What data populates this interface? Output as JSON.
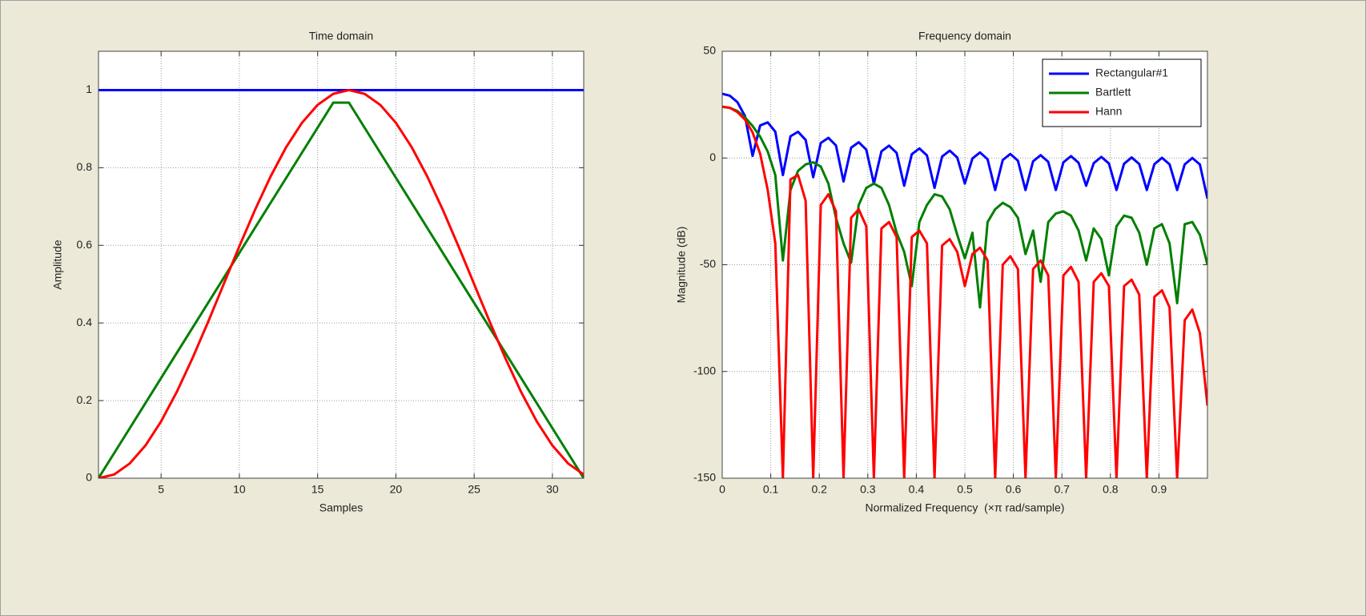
{
  "chart_data": [
    {
      "type": "line",
      "title": "Time domain",
      "xlabel": "Samples",
      "ylabel": "Amplitude",
      "x": [
        1,
        2,
        3,
        4,
        5,
        6,
        7,
        8,
        9,
        10,
        11,
        12,
        13,
        14,
        15,
        16,
        17,
        18,
        19,
        20,
        21,
        22,
        23,
        24,
        25,
        26,
        27,
        28,
        29,
        30,
        31,
        32
      ],
      "xlim": [
        1,
        32
      ],
      "xticks": [
        5,
        10,
        15,
        20,
        25,
        30
      ],
      "ylim": [
        0,
        1.1
      ],
      "yticks": [
        0,
        0.2,
        0.4,
        0.6,
        0.8,
        1
      ],
      "grid": true,
      "series": [
        {
          "color": "#0000ff",
          "values": [
            1,
            1,
            1,
            1,
            1,
            1,
            1,
            1,
            1,
            1,
            1,
            1,
            1,
            1,
            1,
            1,
            1,
            1,
            1,
            1,
            1,
            1,
            1,
            1,
            1,
            1,
            1,
            1,
            1,
            1,
            1,
            1
          ]
        },
        {
          "color": "#007f00",
          "values": [
            0,
            0.0645,
            0.129,
            0.1935,
            0.2581,
            0.3226,
            0.3871,
            0.4516,
            0.5161,
            0.5806,
            0.6452,
            0.7097,
            0.7742,
            0.8387,
            0.9032,
            0.9677,
            0.9677,
            0.9032,
            0.8387,
            0.7742,
            0.7097,
            0.6452,
            0.5806,
            0.5161,
            0.4516,
            0.3871,
            0.3226,
            0.2581,
            0.1935,
            0.129,
            0.0645,
            0
          ]
        },
        {
          "color": "#ff0000",
          "values": [
            0,
            0.0096,
            0.0381,
            0.0843,
            0.1464,
            0.2222,
            0.3087,
            0.4025,
            0.5,
            0.5975,
            0.6913,
            0.7778,
            0.8536,
            0.9157,
            0.9619,
            0.9904,
            1,
            0.9904,
            0.9619,
            0.9157,
            0.8536,
            0.7778,
            0.6913,
            0.5975,
            0.5,
            0.4025,
            0.3087,
            0.2222,
            0.1464,
            0.0843,
            0.0381,
            0.0096
          ]
        }
      ]
    },
    {
      "type": "line",
      "title": "Frequency domain",
      "xlabel": "Normalized Frequency  (×π rad/sample)",
      "ylabel": "Magnitude (dB)",
      "x": [
        0,
        0.015625,
        0.03125,
        0.046875,
        0.0625,
        0.078125,
        0.09375,
        0.109375,
        0.125,
        0.140625,
        0.15625,
        0.171875,
        0.1875,
        0.203125,
        0.21875,
        0.234375,
        0.25,
        0.265625,
        0.28125,
        0.296875,
        0.3125,
        0.328125,
        0.34375,
        0.359375,
        0.375,
        0.390625,
        0.40625,
        0.421875,
        0.4375,
        0.453125,
        0.46875,
        0.484375,
        0.5,
        0.515625,
        0.53125,
        0.546875,
        0.5625,
        0.578125,
        0.59375,
        0.609375,
        0.625,
        0.640625,
        0.65625,
        0.671875,
        0.6875,
        0.703125,
        0.71875,
        0.734375,
        0.75,
        0.765625,
        0.78125,
        0.796875,
        0.8125,
        0.828125,
        0.84375,
        0.859375,
        0.875,
        0.890625,
        0.90625,
        0.921875,
        0.9375,
        0.953125,
        0.96875,
        0.984375,
        1
      ],
      "xlim": [
        0,
        1
      ],
      "xticks": [
        0,
        0.1,
        0.2,
        0.3,
        0.4,
        0.5,
        0.6,
        0.7,
        0.8,
        0.9
      ],
      "ylim": [
        -150,
        50
      ],
      "yticks": [
        -150,
        -100,
        -50,
        0,
        50
      ],
      "grid": true,
      "legend": "northeast",
      "series": [
        {
          "name": "Rectangular#1",
          "color": "#0000ff",
          "values": [
            30.1,
            29.19,
            26.18,
            19.66,
            1,
            15.23,
            16.67,
            12.33,
            -8,
            10.18,
            12.29,
            8.47,
            -9,
            7.06,
            9.45,
            5.87,
            -11,
            4.84,
            7.38,
            3.93,
            -12,
            3.13,
            5.78,
            2.42,
            -13,
            1.78,
            4.5,
            1.21,
            -14,
            0.69,
            3.46,
            0.22,
            -12,
            -0.21,
            2.6,
            -0.59,
            -15,
            -0.94,
            1.9,
            -1.26,
            -15,
            -1.55,
            1.33,
            -1.8,
            -15,
            -2.03,
            0.88,
            -2.23,
            -13,
            -2.41,
            0.52,
            -2.56,
            -15,
            -2.69,
            0.26,
            -2.8,
            -15,
            -2.88,
            0.1,
            -2.95,
            -15,
            -2.99,
            0.01,
            -3.01,
            -19
          ]
        },
        {
          "name": "Bartlett",
          "color": "#007f00",
          "values": [
            24,
            23.5,
            22,
            19,
            15,
            10,
            3,
            -8,
            -48,
            -15,
            -6,
            -3,
            -2,
            -4,
            -12,
            -28,
            -40,
            -49,
            -22,
            -14,
            -12,
            -14,
            -22,
            -35,
            -44,
            -60,
            -30,
            -22,
            -17,
            -18,
            -24,
            -36,
            -47,
            -35,
            -70,
            -30,
            -24,
            -21,
            -23,
            -28,
            -45,
            -34,
            -58,
            -30,
            -26,
            -25,
            -27,
            -34,
            -48,
            -33,
            -38,
            -55,
            -32,
            -27,
            -28,
            -35,
            -50,
            -33,
            -31,
            -40,
            -68,
            -31,
            -30,
            -36,
            -50
          ]
        },
        {
          "name": "Hann",
          "color": "#ff0000",
          "values": [
            24,
            23.5,
            21.5,
            18,
            12,
            2,
            -15,
            -40,
            -150,
            -10,
            -8,
            -20,
            -150,
            -22,
            -17,
            -25,
            -150,
            -28,
            -24,
            -32,
            -150,
            -33,
            -30,
            -37,
            -150,
            -37,
            -34,
            -40,
            -150,
            -41,
            -38,
            -44,
            -60,
            -45,
            -42,
            -48,
            -150,
            -50,
            -46,
            -52,
            -150,
            -52,
            -48,
            -55,
            -150,
            -55,
            -51,
            -58,
            -150,
            -58,
            -54,
            -60,
            -150,
            -60,
            -57,
            -64,
            -150,
            -65,
            -62,
            -70,
            -150,
            -76,
            -71,
            -82,
            -116
          ]
        }
      ]
    }
  ]
}
